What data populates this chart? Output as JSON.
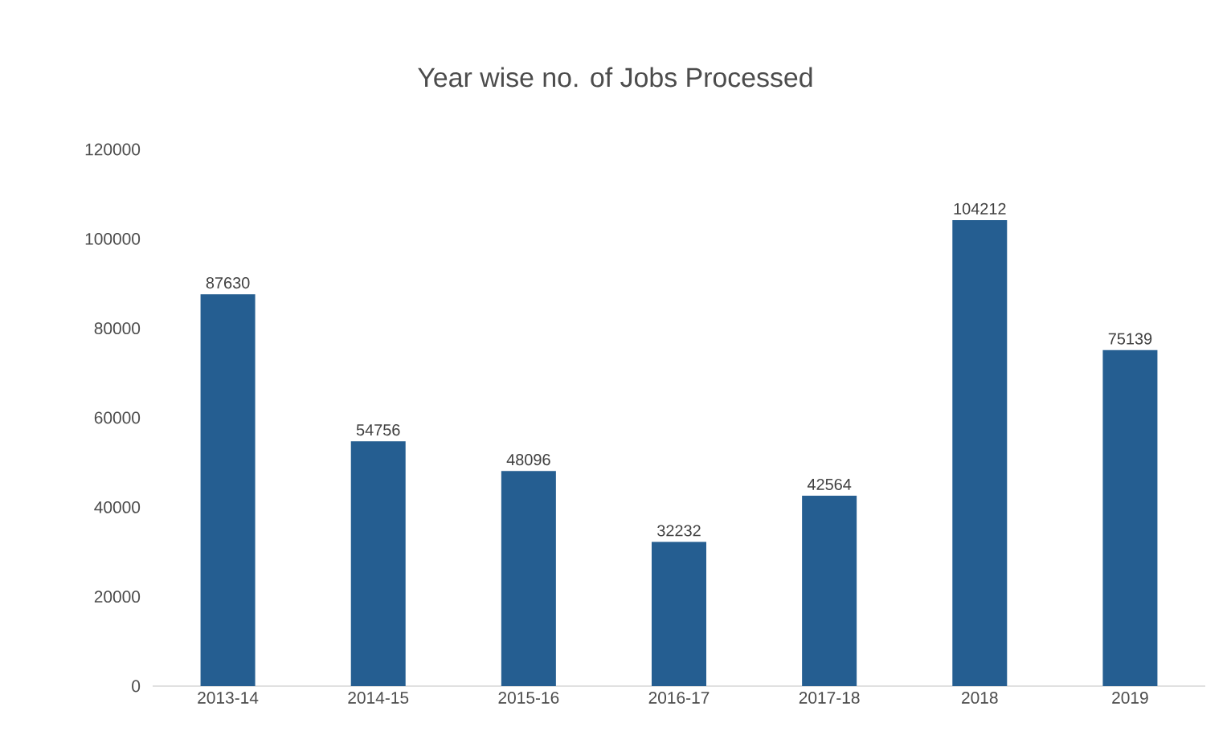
{
  "chart_data": {
    "type": "bar",
    "title": "Year wise no. of Jobs Processed",
    "categories": [
      "2013-14",
      "2014-15",
      "2015-16",
      "2016-17",
      "2017-18",
      "2018",
      "2019"
    ],
    "values": [
      87630,
      54756,
      48096,
      32232,
      42564,
      104212,
      75139
    ],
    "color": "#255e91",
    "ylim": [
      0,
      120000
    ],
    "yticks": [
      0,
      20000,
      40000,
      60000,
      80000,
      100000,
      120000
    ],
    "data_labels": true
  }
}
